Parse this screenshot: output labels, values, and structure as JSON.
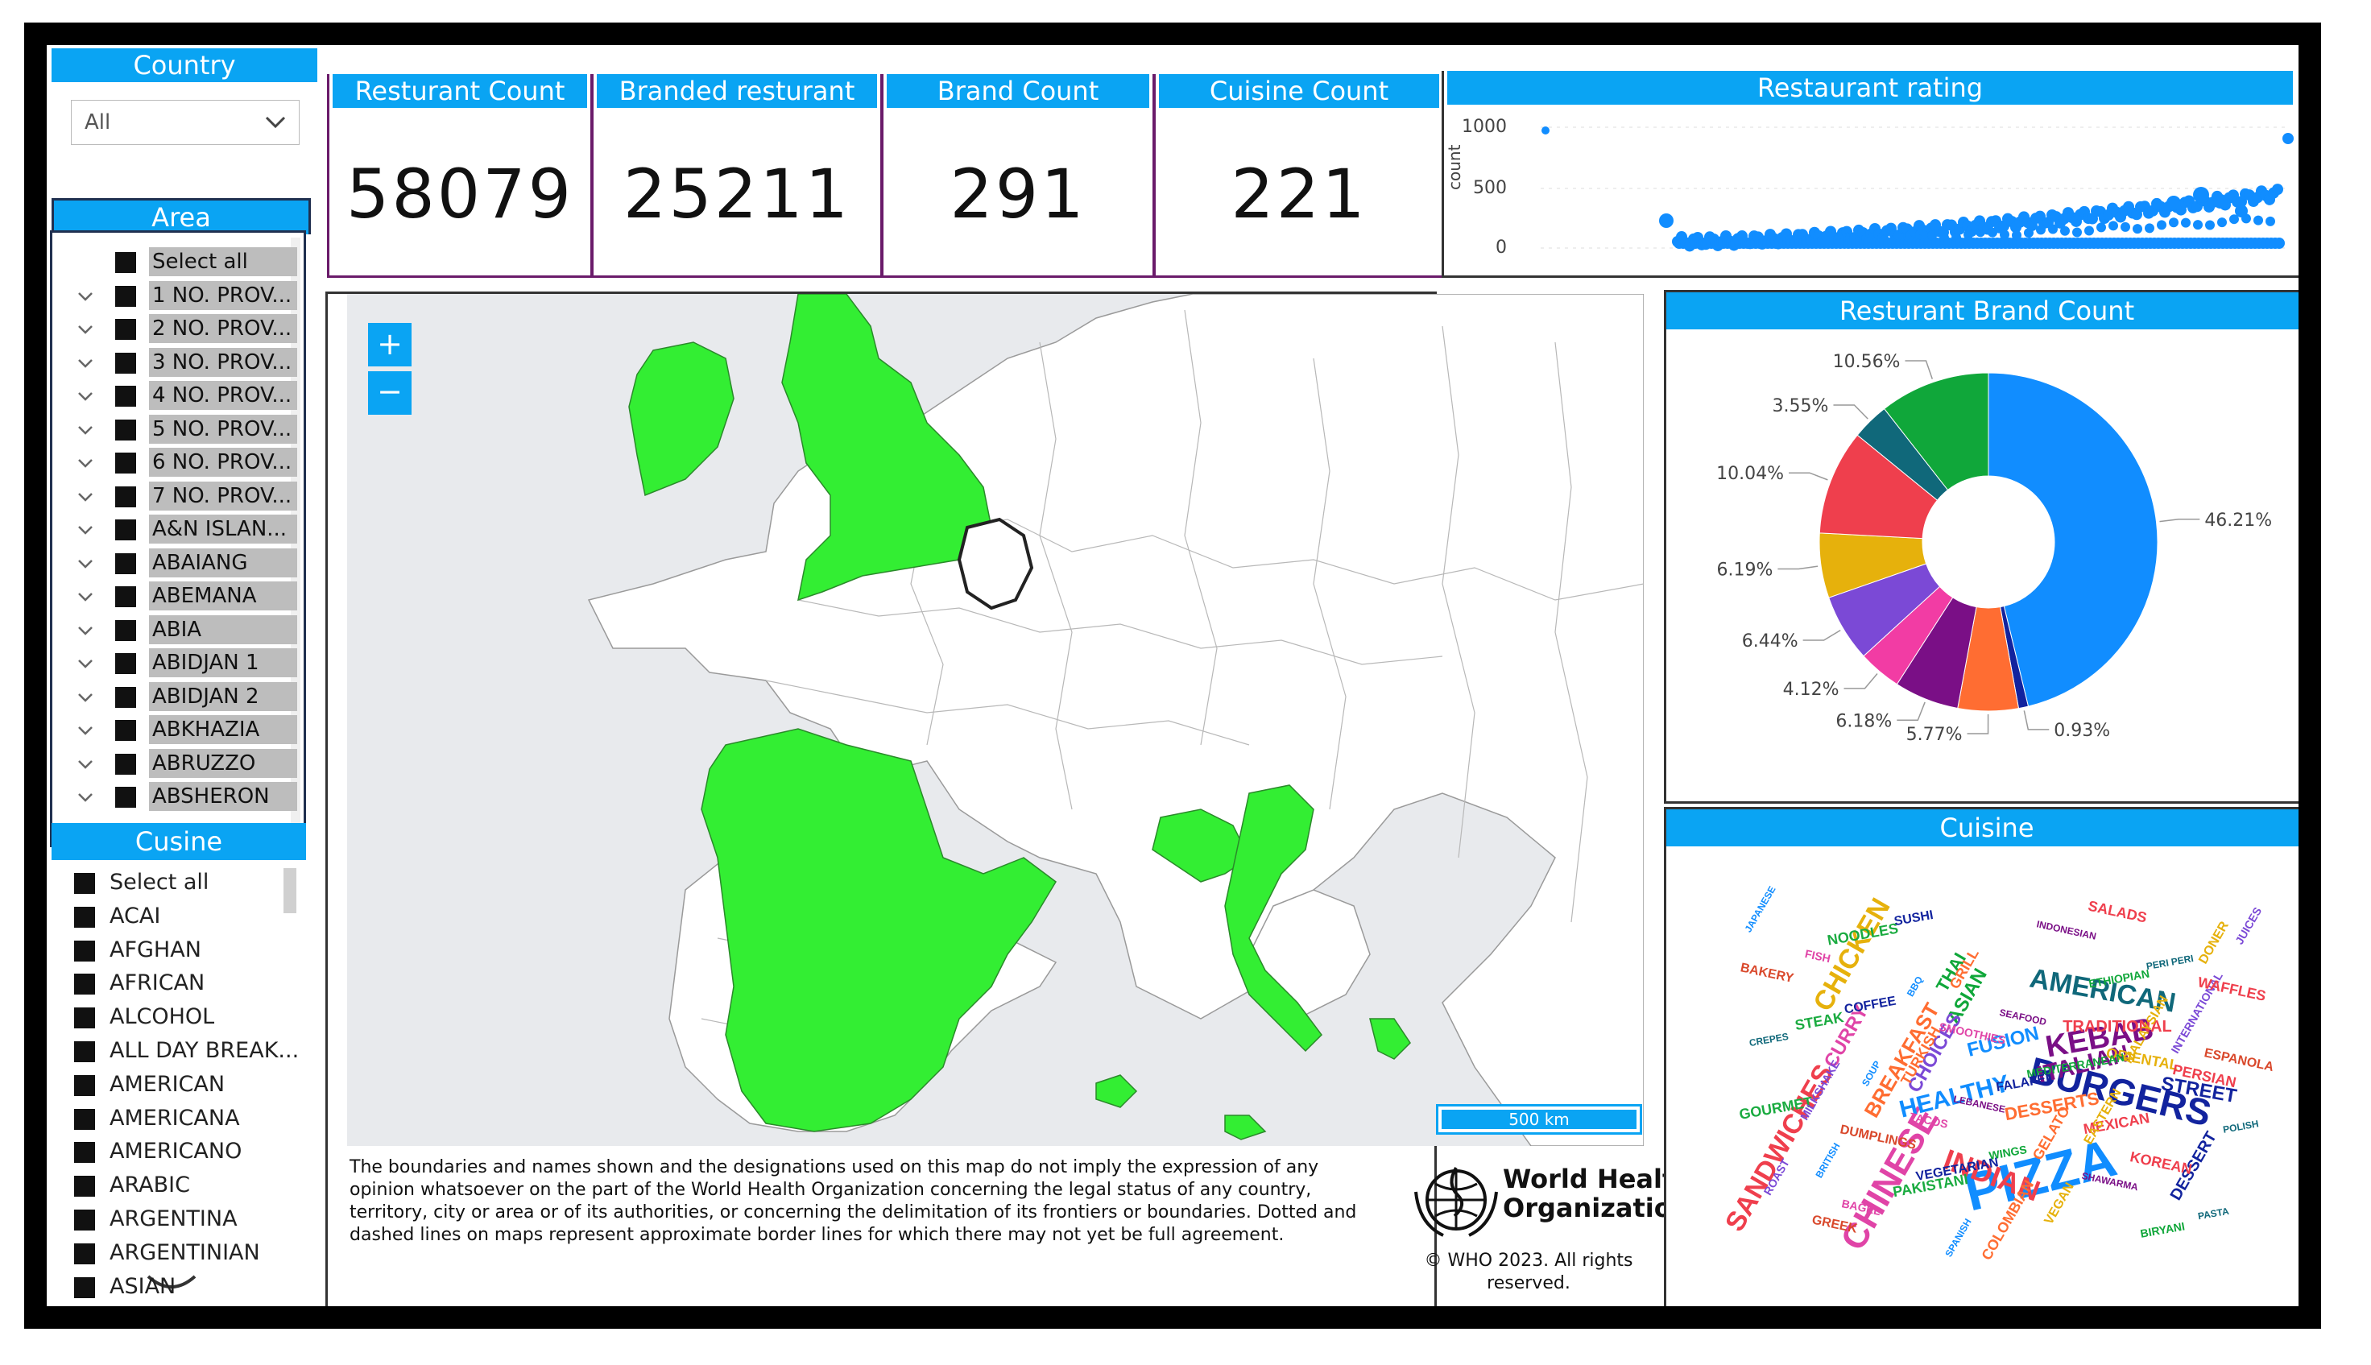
{
  "slicers": {
    "country": {
      "title": "Country",
      "selected": "All"
    },
    "area": {
      "title": "Area",
      "items": [
        "Select all",
        "1 NO. PROV...",
        "2 NO. PROV...",
        "3 NO. PROV...",
        "4 NO. PROV...",
        "5 NO. PROV...",
        "6 NO. PROV...",
        "7 NO. PROV...",
        "A&N ISLAN...",
        "ABAIANG",
        "ABEMANA",
        "ABIA",
        "ABIDJAN 1",
        "ABIDJAN 2",
        "ABKHAZIA",
        "ABRUZZO",
        "ABSHERON"
      ]
    },
    "cuisine": {
      "title": "Cusine",
      "items": [
        "Select all",
        "ACAI",
        "AFGHAN",
        "AFRICAN",
        "ALCOHOL",
        "ALL DAY BREAK...",
        "AMERICAN",
        "AMERICANA",
        "AMERICANO",
        "ARABIC",
        "ARGENTINA",
        "ARGENTINIAN",
        "ASIAN"
      ]
    }
  },
  "kpis": [
    {
      "title": "Resturant Count",
      "value": "58079"
    },
    {
      "title": "Branded resturant",
      "value": "25211"
    },
    {
      "title": "Brand Count",
      "value": "291"
    },
    {
      "title": "Cuisine Count",
      "value": "221"
    }
  ],
  "rating": {
    "title": "Restaurant rating",
    "ylabel": "count",
    "yticks": [
      "1000",
      "500",
      "0"
    ]
  },
  "map": {
    "zoom_in": "+",
    "zoom_out": "−",
    "scale": "500 km",
    "disclaimer": "The boundaries and names shown and the designations used on this map do not imply the expression of any opinion whatsoever on the part of the World Health Organization concerning the legal status of any country, territory, city or area or of its authorities, or concerning the delimitation of its frontiers or boundaries. Dotted and dashed lines on maps represent approximate border lines for which there may not yet be full agreement.",
    "who_line1": "World Health",
    "who_line2": "Organization",
    "copyright": "© WHO 2023. All rights reserved.",
    "colors": {
      "highlight": "#33ee33",
      "selected_outline": "#222222",
      "sea": "#e8eaed"
    }
  },
  "brand_pie": {
    "title": "Resturant Brand Count",
    "slices": [
      {
        "label": "46.21%",
        "value": 46.21,
        "color": "#118dff"
      },
      {
        "label": "0.93%",
        "value": 0.93,
        "color": "#12239e"
      },
      {
        "label": "5.77%",
        "value": 5.77,
        "color": "#ff6d32"
      },
      {
        "label": "6.18%",
        "value": 6.18,
        "color": "#7a0f86"
      },
      {
        "label": "4.12%",
        "value": 4.12,
        "color": "#f23ca4"
      },
      {
        "label": "6.44%",
        "value": 6.44,
        "color": "#7b49d6"
      },
      {
        "label": "6.19%",
        "value": 6.19,
        "color": "#e6b10c"
      },
      {
        "label": "10.04%",
        "value": 10.04,
        "color": "#ef3f4d"
      },
      {
        "label": "3.55%",
        "value": 3.55,
        "color": "#10687a"
      },
      {
        "label": "10.56%",
        "value": 10.56,
        "color": "#10a73a"
      }
    ]
  },
  "cuisine_cloud": {
    "title": "Cuisine",
    "words": [
      "PIZZA",
      "BURGERS",
      "KEBAB",
      "AMERICAN",
      "CHINESE",
      "INDIAN",
      "SANDWICHES",
      "CHICKEN",
      "HEALTHY",
      "ITALIAN",
      "BREAKFAST",
      "DESSERTS",
      "ASIAN",
      "FUSION",
      "CURRY",
      "CHOICES",
      "STREET",
      "MEXICAN",
      "THAI",
      "JAPANESE",
      "DESSERT",
      "FISH",
      "COFFEE",
      "TURKISH",
      "LEBANESE",
      "TRADITIONAL",
      "ORIENTAL",
      "WINGS",
      "VEGAN",
      "SALADS",
      "PERI PERI",
      "INTERNATIONAL",
      "ESPANOLA",
      "GOURMET",
      "BRITISH",
      "BAGEL",
      "SUSHI",
      "GRILL",
      "SEAFOOD",
      "MEDITERRANEAN",
      "EASTERN",
      "KOREAN",
      "PASTA",
      "JUICES",
      "BAKERY",
      "STEAK",
      "SOUP",
      "TACOS",
      "VEGETARIAN",
      "COLOMBIAN",
      "INDONESIAN",
      "ETHIOPIAN",
      "MALAYSIAN",
      "PERSIAN",
      "POLISH",
      "ROAST",
      "GREEK",
      "NOODLES",
      "BBQ",
      "SMOOTHIES",
      "FALAFEL",
      "GELATO",
      "SHAWARMA",
      "BIRYANI",
      "DONER",
      "WAFFLES",
      "CREPES",
      "MILKSHAKE",
      "DUMPLINGS",
      "PAKISTANI",
      "SPANISH"
    ]
  }
}
